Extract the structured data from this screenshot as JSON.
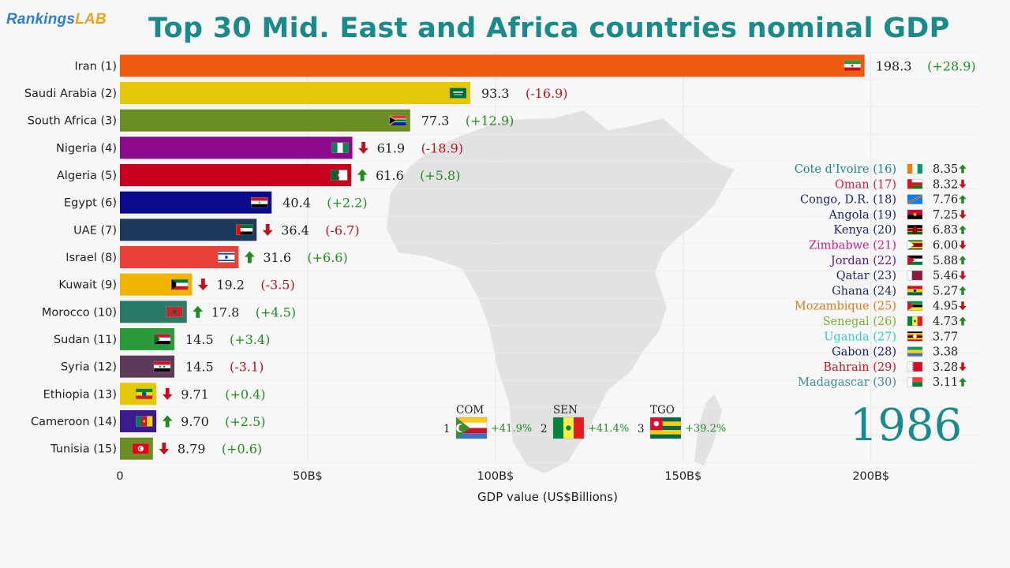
{
  "brand": {
    "part1": "Rankings",
    "part2": "LAB"
  },
  "title": "Top 30 Mid. East and Africa countries nominal GDP",
  "year": "1986",
  "colors": {
    "up": "#1e8c1e",
    "down": "#c0101a",
    "title": "#1a8a8a"
  },
  "chart_data": {
    "type": "bar",
    "orientation": "horizontal",
    "title": "Top 30 Mid. East and Africa countries nominal GDP",
    "xlabel": "GDP value (US$Billions)",
    "ylabel": "",
    "xlim": [
      0,
      228
    ],
    "xticks": [
      {
        "value": 0,
        "label": "0"
      },
      {
        "value": 50,
        "label": "50B$"
      },
      {
        "value": 100,
        "label": "100B$"
      },
      {
        "value": 150,
        "label": "150B$"
      },
      {
        "value": 200,
        "label": "200B$"
      }
    ],
    "grid": true,
    "bars": [
      {
        "name": "Iran (1)",
        "value": 198.3,
        "value_label": "198.3",
        "change": "(+28.9)",
        "dir": "up",
        "arrow": "none",
        "color": "#f05a0e",
        "flag": "iran"
      },
      {
        "name": "Saudi Arabia (2)",
        "value": 93.3,
        "value_label": "93.3",
        "change": "(-16.9)",
        "dir": "down",
        "arrow": "none",
        "color": "#e6c80a",
        "flag": "saudi"
      },
      {
        "name": "South Africa (3)",
        "value": 77.3,
        "value_label": "77.3",
        "change": "(+12.9)",
        "dir": "up",
        "arrow": "none",
        "color": "#6b8e23",
        "flag": "southafrica"
      },
      {
        "name": "Nigeria (4)",
        "value": 61.9,
        "value_label": "61.9",
        "change": "(-18.9)",
        "dir": "down",
        "arrow": "down",
        "color": "#8b0a8c",
        "flag": "nigeria"
      },
      {
        "name": "Algeria (5)",
        "value": 61.6,
        "value_label": "61.6",
        "change": "(+5.8)",
        "dir": "up",
        "arrow": "up",
        "color": "#c8001e",
        "flag": "algeria"
      },
      {
        "name": "Egypt (6)",
        "value": 40.4,
        "value_label": "40.4",
        "change": "(+2.2)",
        "dir": "up",
        "arrow": "none",
        "color": "#0a0a8c",
        "flag": "egypt"
      },
      {
        "name": "UAE (7)",
        "value": 36.4,
        "value_label": "36.4",
        "change": "(-6.7)",
        "dir": "down",
        "arrow": "down",
        "color": "#1c3a5e",
        "flag": "uae"
      },
      {
        "name": "Israel (8)",
        "value": 31.6,
        "value_label": "31.6",
        "change": "(+6.6)",
        "dir": "up",
        "arrow": "up",
        "color": "#e8413a",
        "flag": "israel"
      },
      {
        "name": "Kuwait (9)",
        "value": 19.2,
        "value_label": "19.2",
        "change": "(-3.5)",
        "dir": "down",
        "arrow": "down",
        "color": "#f0b400",
        "flag": "kuwait"
      },
      {
        "name": "Morocco (10)",
        "value": 17.8,
        "value_label": "17.8",
        "change": "(+4.5)",
        "dir": "up",
        "arrow": "up",
        "color": "#2a7a6a",
        "flag": "morocco"
      },
      {
        "name": "Sudan (11)",
        "value": 14.5,
        "value_label": "14.5",
        "change": "(+3.4)",
        "dir": "up",
        "arrow": "none",
        "color": "#2a9a3a",
        "flag": "sudan"
      },
      {
        "name": "Syria (12)",
        "value": 14.5,
        "value_label": "14.5",
        "change": "(-3.1)",
        "dir": "down",
        "arrow": "none",
        "color": "#5e3a5a",
        "flag": "syria"
      },
      {
        "name": "Ethiopia (13)",
        "value": 9.71,
        "value_label": "9.71",
        "change": "(+0.4)",
        "dir": "up",
        "arrow": "down",
        "color": "#e6c80a",
        "flag": "ethiopia"
      },
      {
        "name": "Cameroon (14)",
        "value": 9.7,
        "value_label": "9.70",
        "change": "(+2.5)",
        "dir": "up",
        "arrow": "up",
        "color": "#3a1a8c",
        "flag": "cameroon"
      },
      {
        "name": "Tunisia (15)",
        "value": 8.79,
        "value_label": "8.79",
        "change": "(+0.6)",
        "dir": "up",
        "arrow": "down",
        "color": "#6b8e23",
        "flag": "tunisia"
      }
    ],
    "ranks_16_30": [
      {
        "name": "Cote d'Ivoire (16)",
        "value": "8.35",
        "arrow": "up",
        "color": "#1a8a8a",
        "flag": "ivorycoast"
      },
      {
        "name": "Oman (17)",
        "value": "8.32",
        "arrow": "down",
        "color": "#c81e5a",
        "flag": "oman"
      },
      {
        "name": "Congo, D.R. (18)",
        "value": "7.76",
        "arrow": "up",
        "color": "#1a2a6a",
        "flag": "drc"
      },
      {
        "name": "Angola (19)",
        "value": "7.25",
        "arrow": "down",
        "color": "#1a2a6a",
        "flag": "angola"
      },
      {
        "name": "Kenya (20)",
        "value": "6.83",
        "arrow": "up",
        "color": "#1a2a6a",
        "flag": "kenya"
      },
      {
        "name": "Zimbabwe (21)",
        "value": "6.00",
        "arrow": "down",
        "color": "#c81e8c",
        "flag": "zimbabwe"
      },
      {
        "name": "Jordan (22)",
        "value": "5.88",
        "arrow": "up",
        "color": "#5a1a8c",
        "flag": "jordan"
      },
      {
        "name": "Qatar (23)",
        "value": "5.46",
        "arrow": "down",
        "color": "#1a2a6a",
        "flag": "qatar"
      },
      {
        "name": "Ghana (24)",
        "value": "5.27",
        "arrow": "up",
        "color": "#1a2a6a",
        "flag": "ghana"
      },
      {
        "name": "Mozambique (25)",
        "value": "4.95",
        "arrow": "down",
        "color": "#e07818",
        "flag": "mozambique"
      },
      {
        "name": "Senegal (26)",
        "value": "4.73",
        "arrow": "up",
        "color": "#7ab42a",
        "flag": "senegal"
      },
      {
        "name": "Uganda (27)",
        "value": "3.77",
        "arrow": "none",
        "color": "#3ac8c8",
        "flag": "uganda"
      },
      {
        "name": "Gabon (28)",
        "value": "3.38",
        "arrow": "none",
        "color": "#1a2a6a",
        "flag": "gabon"
      },
      {
        "name": "Bahrain (29)",
        "value": "3.28",
        "arrow": "down",
        "color": "#c8141e",
        "flag": "bahrain"
      },
      {
        "name": "Madagascar (30)",
        "value": "3.11",
        "arrow": "up",
        "color": "#3a8a9a",
        "flag": "madagascar"
      }
    ],
    "top_growth": [
      {
        "rank": "1",
        "code": "COM",
        "pct": "+41.9%",
        "flag": "comoros"
      },
      {
        "rank": "2",
        "code": "SEN",
        "pct": "+41.4%",
        "flag": "senegal"
      },
      {
        "rank": "3",
        "code": "TGO",
        "pct": "+39.2%",
        "flag": "togo"
      }
    ]
  }
}
